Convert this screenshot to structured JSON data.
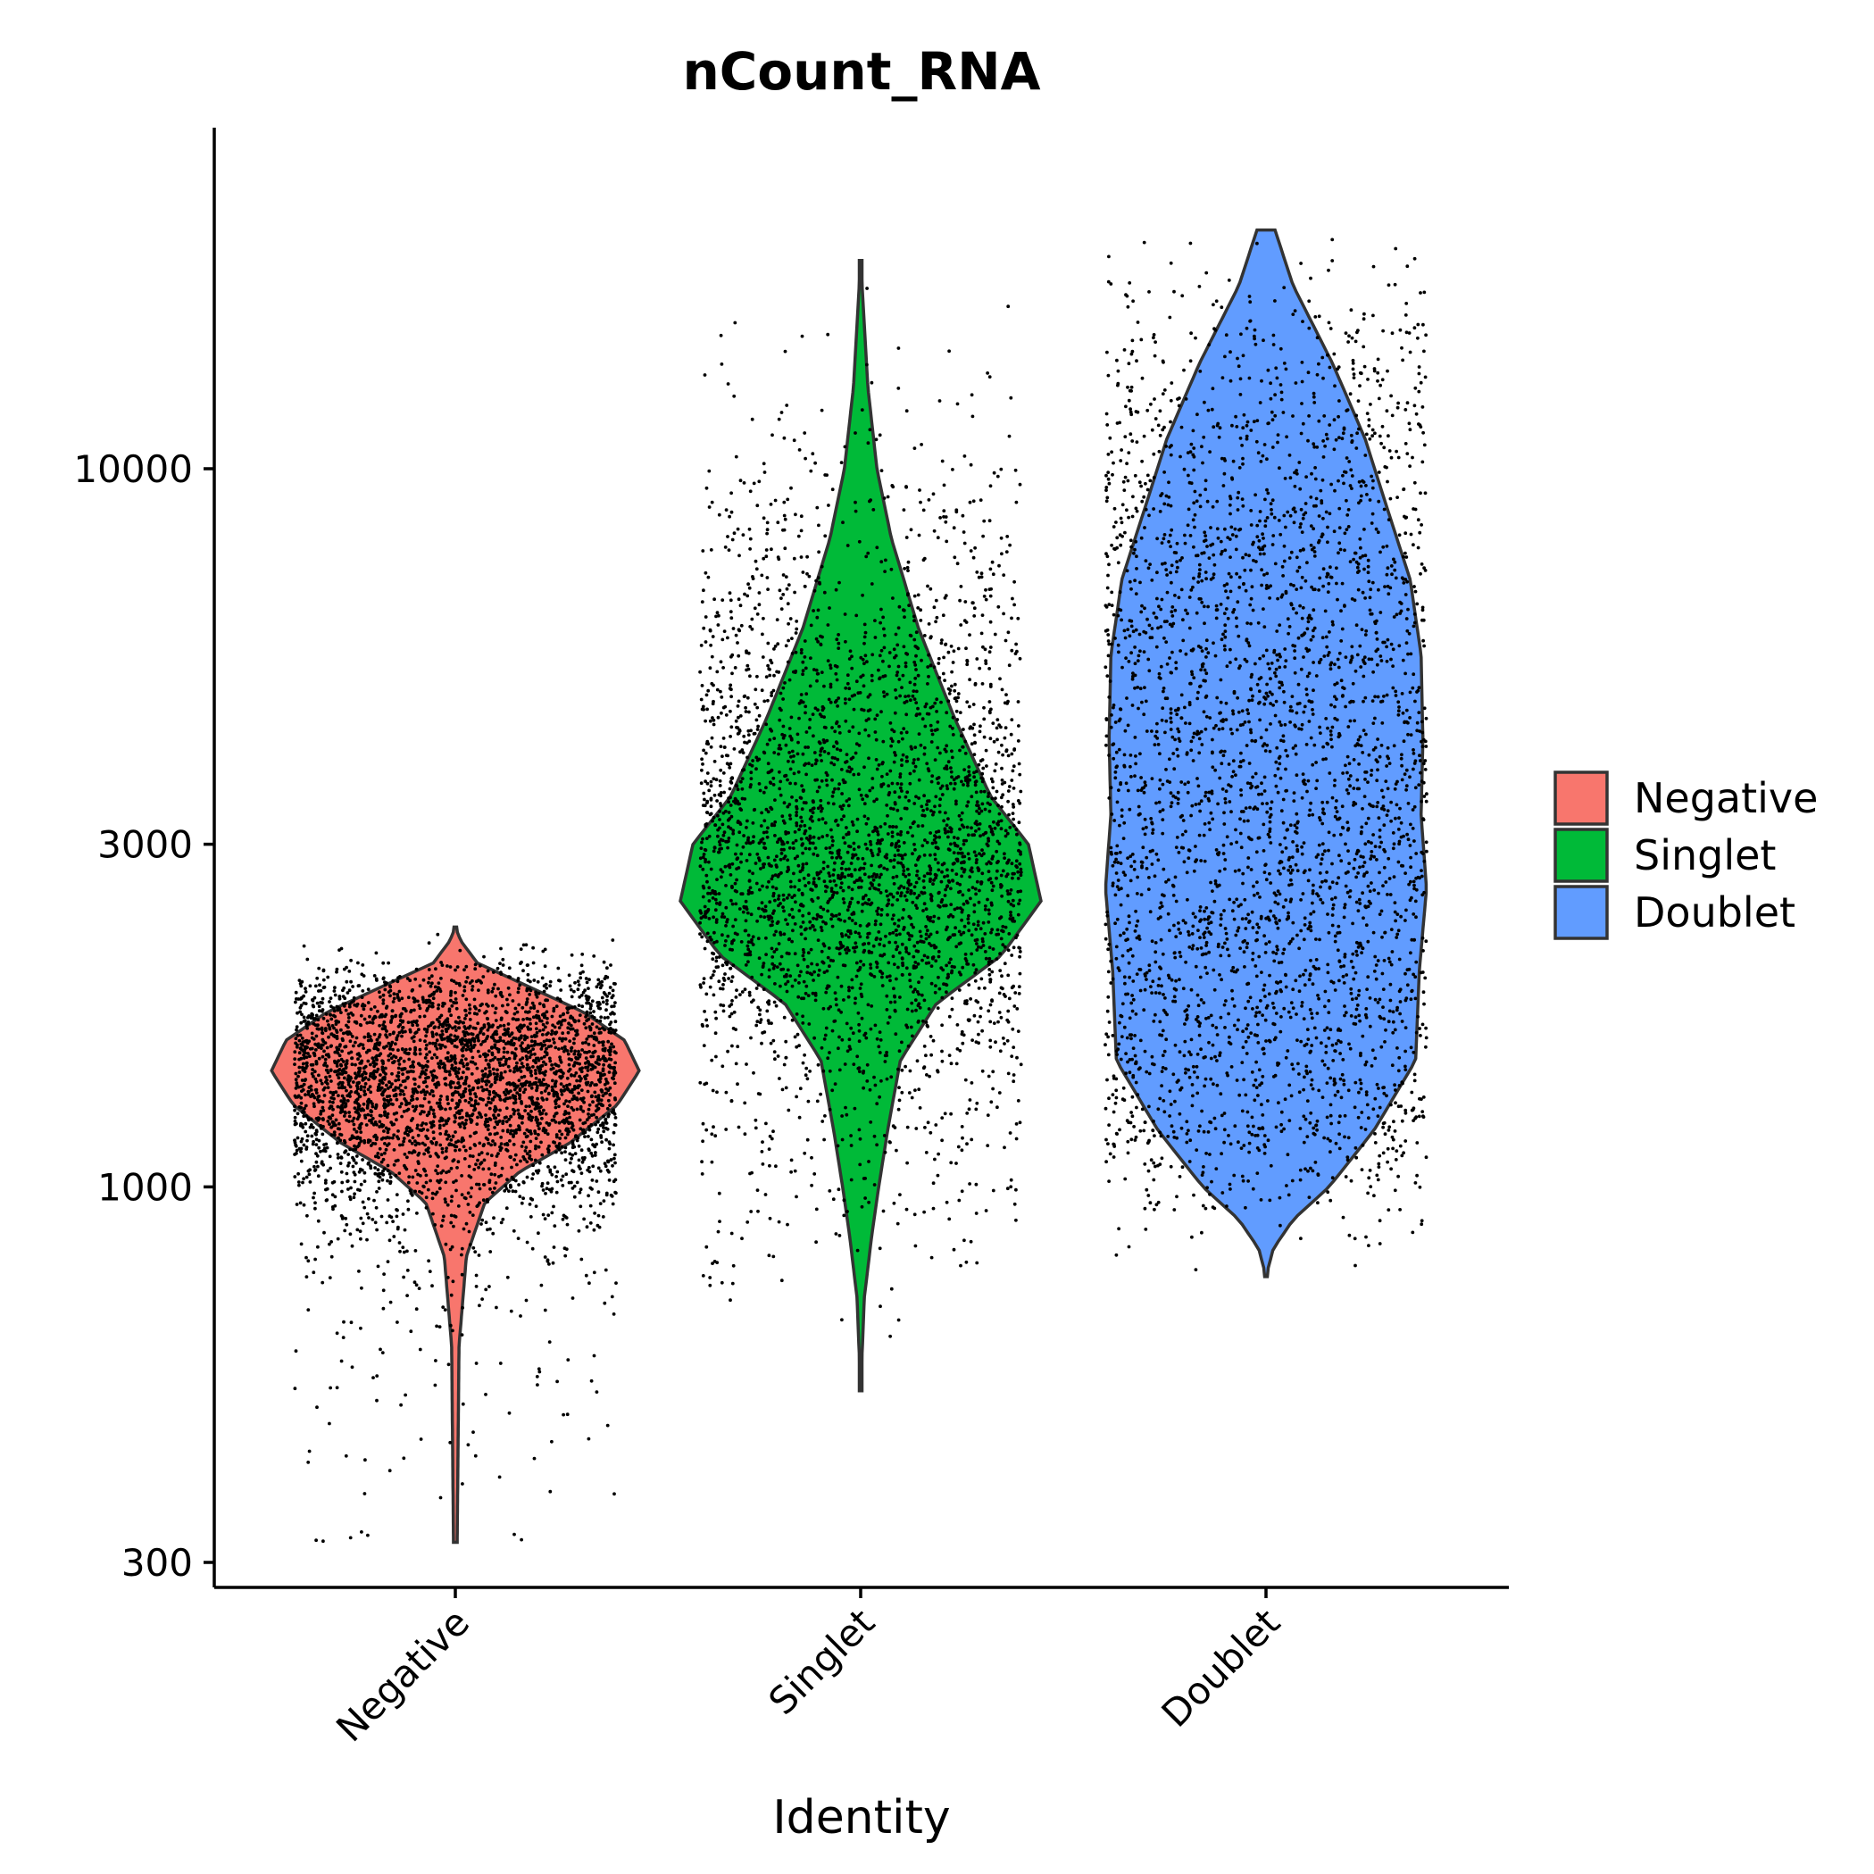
{
  "chart_data": {
    "type": "violin",
    "title": "nCount_RNA",
    "xlabel": "Identity",
    "ylabel": "",
    "yscale": "log10",
    "ylim": [
      280,
      26000
    ],
    "yticks": [
      300,
      1000,
      3000,
      10000
    ],
    "yticklabels": [
      "300",
      "1000",
      "3000",
      "10000"
    ],
    "categories": [
      "Negative",
      "Singlet",
      "Doublet"
    ],
    "legend": {
      "position": "right",
      "entries": [
        {
          "label": "Negative",
          "color": "#F8766D"
        },
        {
          "label": "Singlet",
          "color": "#00BA38"
        },
        {
          "label": "Doublet",
          "color": "#619CFF"
        }
      ]
    },
    "series": [
      {
        "category": "Negative",
        "color": "#F8766D",
        "range": [
          320,
          2300
        ],
        "median": 1450,
        "density_profile": [
          [
            320,
            0.01
          ],
          [
            600,
            0.02
          ],
          [
            800,
            0.06
          ],
          [
            950,
            0.16
          ],
          [
            1050,
            0.35
          ],
          [
            1150,
            0.62
          ],
          [
            1300,
            0.88
          ],
          [
            1450,
            1.0
          ],
          [
            1600,
            0.92
          ],
          [
            1750,
            0.7
          ],
          [
            1900,
            0.4
          ],
          [
            2050,
            0.12
          ],
          [
            2200,
            0.03
          ],
          [
            2300,
            0.0
          ]
        ]
      },
      {
        "category": "Singlet",
        "color": "#00BA38",
        "range": [
          520,
          19500
        ],
        "median": 2700,
        "density_profile": [
          [
            520,
            0.0
          ],
          [
            700,
            0.02
          ],
          [
            850,
            0.06
          ],
          [
            1000,
            0.1
          ],
          [
            1200,
            0.15
          ],
          [
            1500,
            0.22
          ],
          [
            1800,
            0.42
          ],
          [
            2100,
            0.78
          ],
          [
            2500,
            1.0
          ],
          [
            3000,
            0.93
          ],
          [
            3500,
            0.72
          ],
          [
            4500,
            0.52
          ],
          [
            6000,
            0.32
          ],
          [
            8000,
            0.17
          ],
          [
            10000,
            0.09
          ],
          [
            13000,
            0.04
          ],
          [
            19500,
            0.0
          ]
        ]
      },
      {
        "category": "Doublet",
        "color": "#619CFF",
        "range": [
          750,
          21500
        ],
        "median": 3400,
        "density_profile": [
          [
            750,
            0.0
          ],
          [
            820,
            0.04
          ],
          [
            900,
            0.15
          ],
          [
            1000,
            0.35
          ],
          [
            1200,
            0.6
          ],
          [
            1500,
            0.83
          ],
          [
            2000,
            0.85
          ],
          [
            2600,
            0.89
          ],
          [
            3300,
            0.86
          ],
          [
            4200,
            0.87
          ],
          [
            5500,
            0.86
          ],
          [
            7000,
            0.8
          ],
          [
            9000,
            0.66
          ],
          [
            11000,
            0.55
          ],
          [
            14000,
            0.37
          ],
          [
            18000,
            0.15
          ],
          [
            21500,
            0.05
          ]
        ]
      }
    ]
  }
}
